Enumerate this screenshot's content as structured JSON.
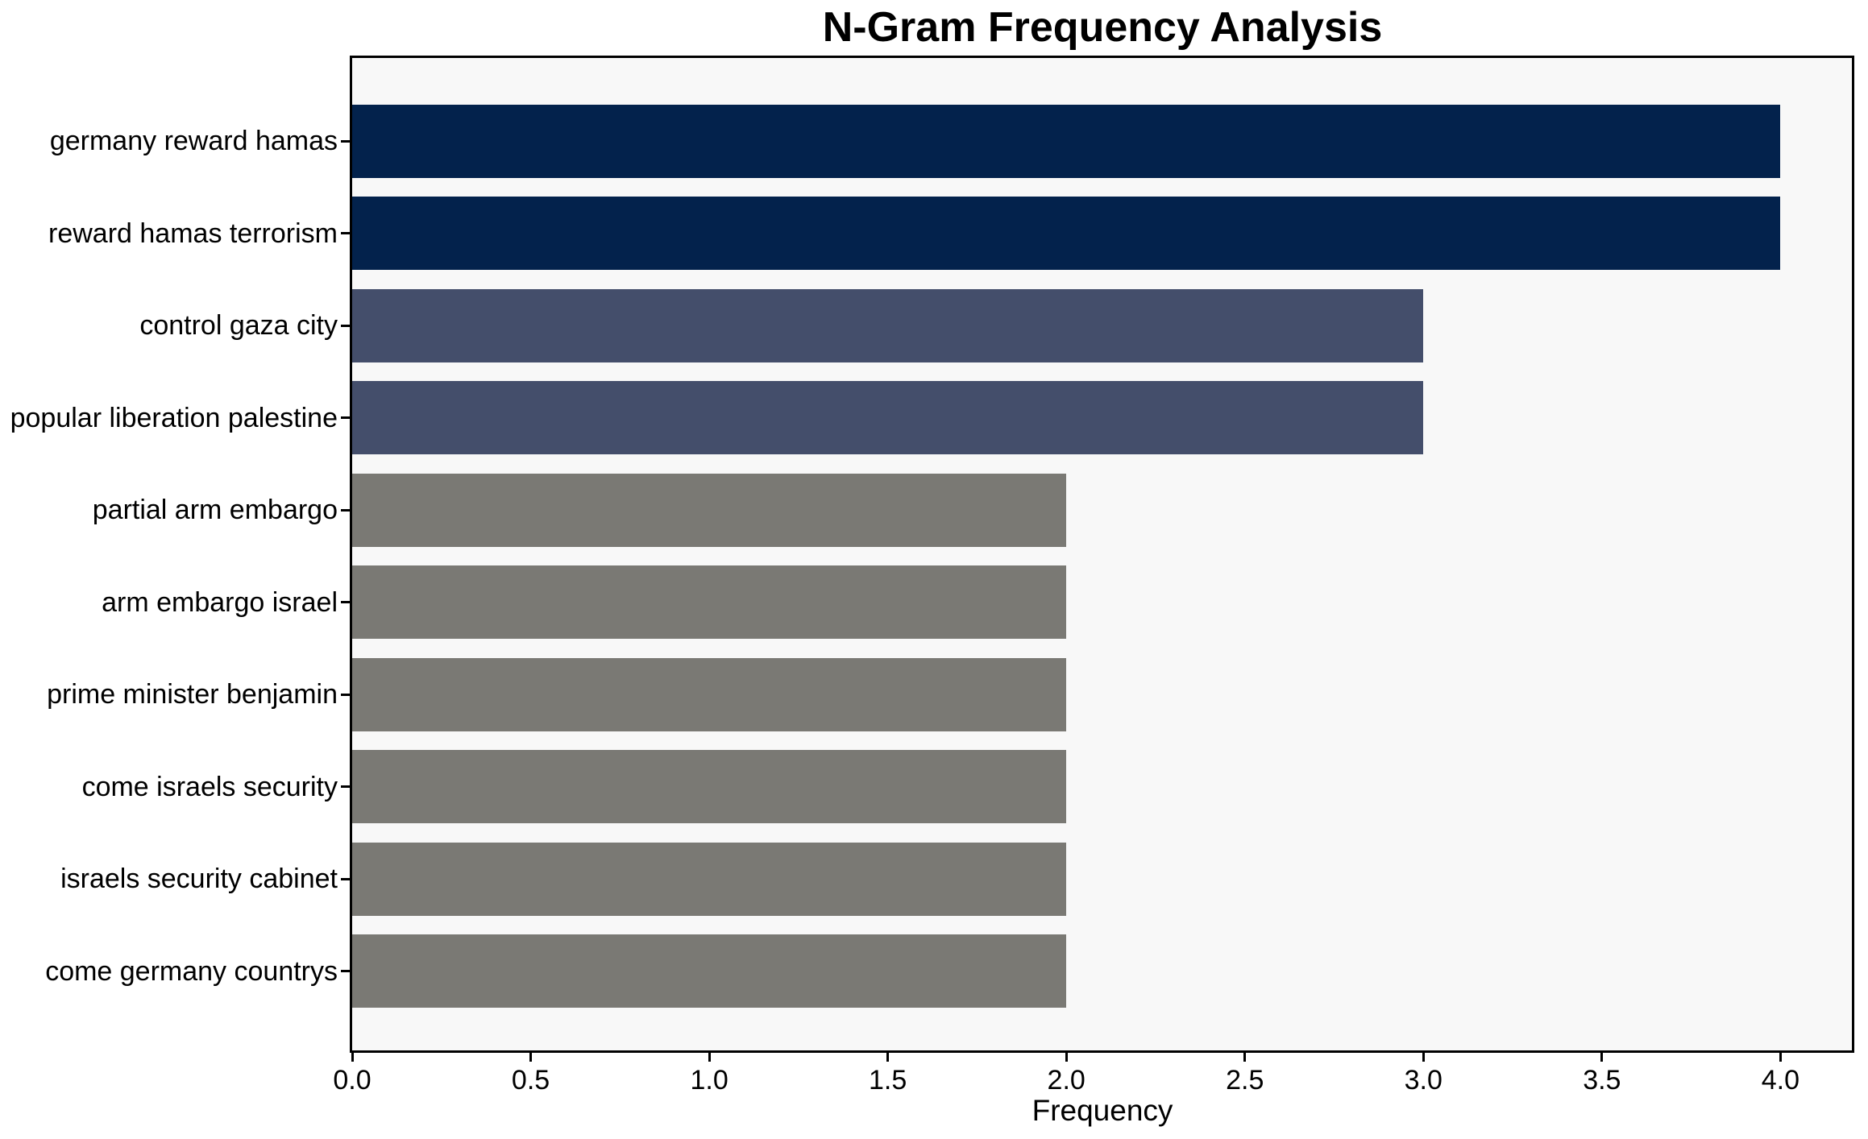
{
  "chart_data": {
    "type": "bar",
    "orientation": "horizontal",
    "title": "N-Gram Frequency Analysis",
    "xlabel": "Frequency",
    "ylabel": "",
    "categories": [
      "germany reward hamas",
      "reward hamas terrorism",
      "control gaza city",
      "popular liberation palestine",
      "partial arm embargo",
      "arm embargo israel",
      "prime minister benjamin",
      "come israels security",
      "israels security cabinet",
      "come germany countrys"
    ],
    "values": [
      4,
      4,
      3,
      3,
      2,
      2,
      2,
      2,
      2,
      2
    ],
    "bar_colors": [
      "#03224c",
      "#03224c",
      "#444e6b",
      "#444e6b",
      "#7a7974",
      "#7a7974",
      "#7a7974",
      "#7a7974",
      "#7a7974",
      "#7a7974"
    ],
    "xlim": [
      0,
      4.2
    ],
    "x_ticks": [
      0.0,
      0.5,
      1.0,
      1.5,
      2.0,
      2.5,
      3.0,
      3.5,
      4.0
    ],
    "x_tick_labels": [
      "0.0",
      "0.5",
      "1.0",
      "1.5",
      "2.0",
      "2.5",
      "3.0",
      "3.5",
      "4.0"
    ],
    "grid": false,
    "legend": null,
    "bar_relative_height": 0.8,
    "colors": {
      "plot_background": "#f8f8f8",
      "figure_background": "#ffffff",
      "spine": "#000000",
      "text": "#000000"
    }
  }
}
